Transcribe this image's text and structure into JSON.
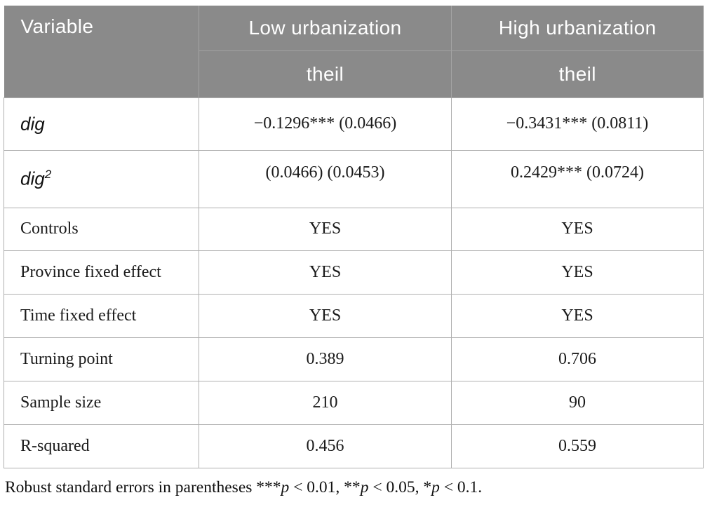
{
  "table": {
    "header": {
      "variable_label": "Variable",
      "group1_label": "Low urbanization",
      "group2_label": "High urbanization",
      "group1_sub": "theil",
      "group2_sub": "theil"
    },
    "rows": [
      {
        "label": "dig",
        "sup": "",
        "v1": "−0.1296*** (0.0466)",
        "v2": "−0.3431*** (0.0811)"
      },
      {
        "label": "dig",
        "sup": "2",
        "v1": "(0.0466) (0.0453)",
        "v2": "0.2429*** (0.0724)"
      },
      {
        "label": "Controls",
        "sup": "",
        "v1": "YES",
        "v2": "YES"
      },
      {
        "label": "Province fixed effect",
        "sup": "",
        "v1": "YES",
        "v2": "YES"
      },
      {
        "label": "Time fixed effect",
        "sup": "",
        "v1": "YES",
        "v2": "YES"
      },
      {
        "label": "Turning point",
        "sup": "",
        "v1": "0.389",
        "v2": "0.706"
      },
      {
        "label": "Sample size",
        "sup": "",
        "v1": "210",
        "v2": "90"
      },
      {
        "label": "R-squared",
        "sup": "",
        "v1": "0.456",
        "v2": "0.559"
      }
    ],
    "footnote": {
      "part1": "Robust standard errors in parentheses ***",
      "p1": "p",
      "part2": " < 0.01, **",
      "p2": "p",
      "part3": " < 0.05, *",
      "p3": "p",
      "part4": " < 0.1."
    },
    "colors": {
      "header_bg": "#8a8a8a",
      "header_text": "#ffffff",
      "header_divider": "#a3a3a3",
      "body_border": "#b0b0b0",
      "body_text": "#1a1a1a"
    }
  }
}
